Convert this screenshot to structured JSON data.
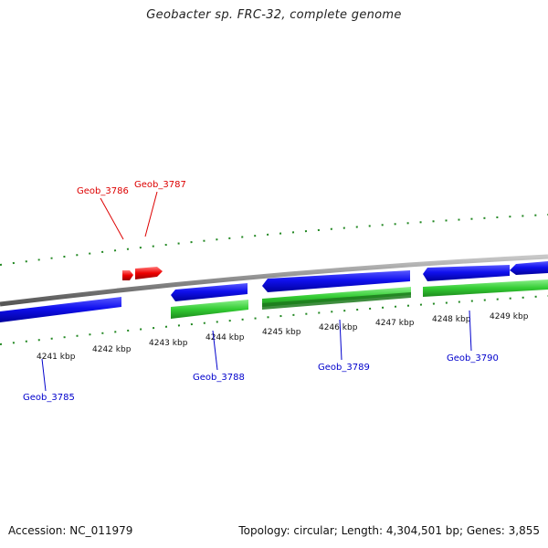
{
  "title": "Geobacter sp. FRC-32, complete genome",
  "footer": {
    "accession": "Accession: NC_011979",
    "summary": "Topology: circular; Length: 4,304,501 bp; Genes: 3,855"
  },
  "colors": {
    "forward_gene": "#ee0000",
    "reverse_gene": "#0000dd",
    "cds": "#33cc33",
    "tick": "#228822",
    "backbone": "#8a8a8a",
    "label_red": "#dd0000",
    "label_blue": "#0000cc"
  },
  "ruler_labels": [
    "4241 kbp",
    "4242 kbp",
    "4243 kbp",
    "4244 kbp",
    "4245 kbp",
    "4246 kbp",
    "4247 kbp",
    "4248 kbp",
    "4249 kbp"
  ],
  "genes": [
    {
      "name": "Geob_3785",
      "strand": "reverse"
    },
    {
      "name": "Geob_3786",
      "strand": "forward"
    },
    {
      "name": "Geob_3787",
      "strand": "forward"
    },
    {
      "name": "Geob_3788",
      "strand": "reverse"
    },
    {
      "name": "Geob_3789",
      "strand": "reverse"
    },
    {
      "name": "Geob_3790",
      "strand": "reverse"
    }
  ]
}
